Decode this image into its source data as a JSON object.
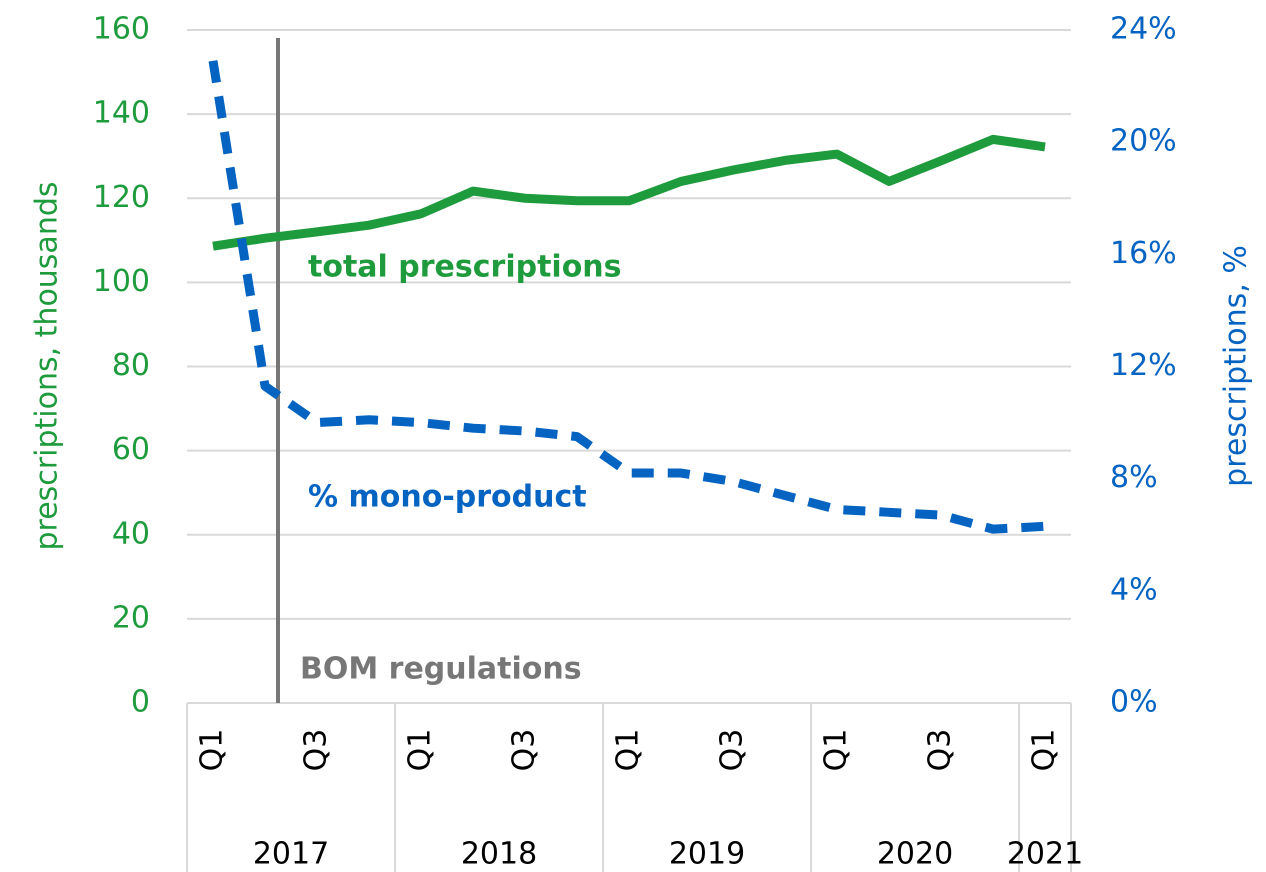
{
  "chart_data": {
    "type": "line",
    "categories": [
      "Q1",
      null,
      "Q3",
      null,
      "Q1",
      null,
      "Q3",
      null,
      "Q1",
      null,
      "Q3",
      null,
      "Q1",
      null,
      "Q3",
      null,
      "Q1"
    ],
    "category_groups": [
      "2017",
      "2018",
      "2019",
      "2020",
      "2021"
    ],
    "y_label": "prescriptions, thousands",
    "y2_label": "prescriptions, %",
    "ylim": [
      0,
      160
    ],
    "yticks": [
      0,
      20,
      40,
      60,
      80,
      100,
      120,
      140,
      160
    ],
    "y2lim": [
      0,
      24
    ],
    "y2ticks": [
      {
        "value": 0,
        "label": "0%"
      },
      {
        "value": 4,
        "label": "4%"
      },
      {
        "value": 8,
        "label": "8%"
      },
      {
        "value": 12,
        "label": "12%"
      },
      {
        "value": 16,
        "label": "16%"
      },
      {
        "value": 20,
        "label": "20%"
      },
      {
        "value": 24,
        "label": "24%"
      }
    ],
    "grid": true,
    "series": [
      {
        "name": "total prescriptions",
        "color": "#1e9b3c",
        "axis": "y",
        "style": "solid",
        "values": [
          108.6,
          110.5,
          112,
          113.6,
          116.3,
          121.7,
          120,
          119.4,
          119.4,
          124,
          126.7,
          129,
          130.5,
          124,
          128.9,
          134,
          132.2
        ]
      },
      {
        "name": "% mono-product",
        "color": "#0563c1",
        "axis": "y2",
        "style": "dashed",
        "values": [
          22.9,
          11.3,
          10.0,
          10.1,
          10.0,
          9.8,
          9.7,
          9.5,
          8.2,
          8.2,
          7.9,
          7.4,
          6.9,
          6.8,
          6.7,
          6.2,
          6.3
        ]
      }
    ],
    "annotation": {
      "label": "BOM regulations",
      "color": "#777777"
    }
  }
}
